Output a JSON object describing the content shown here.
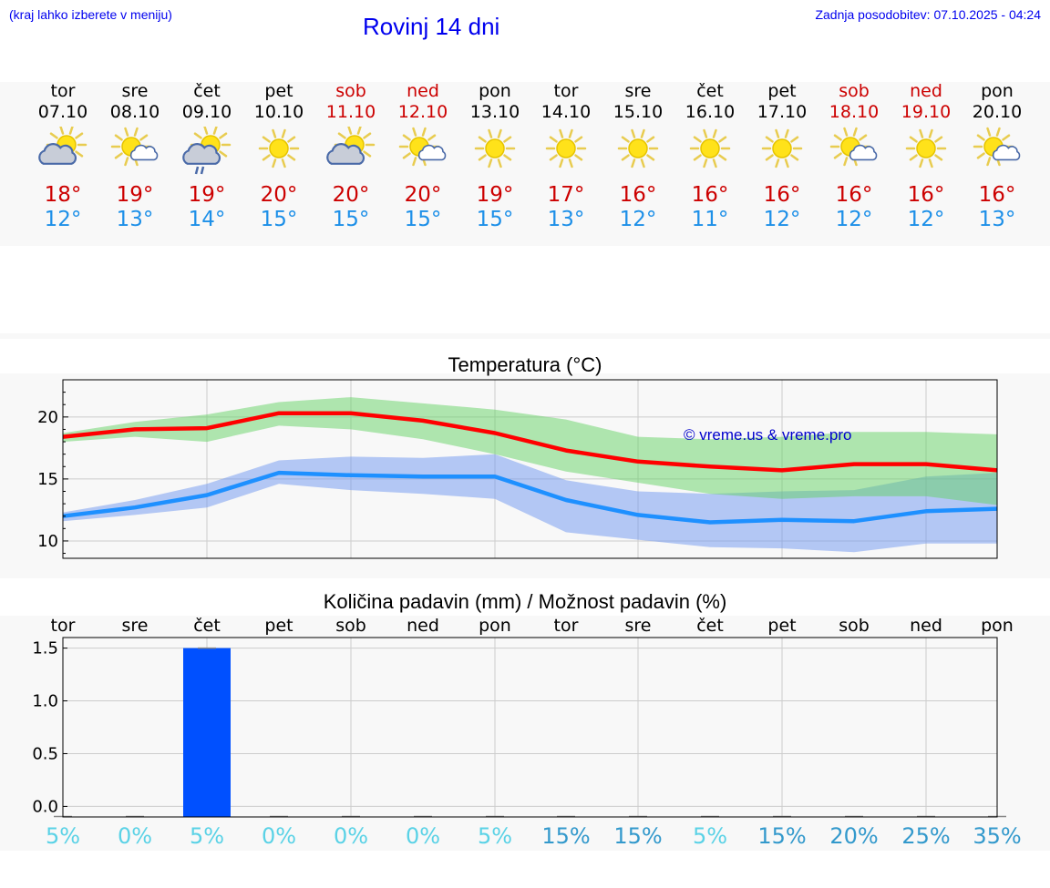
{
  "header": {
    "hint": "(kraj lahko izberete v meniju)",
    "title": "Rovinj 14 dni",
    "updated": "Zadnja posodobitev: 07.10.2025 - 04:24"
  },
  "colors": {
    "max": "#cc0000",
    "min": "#1e90e8",
    "link": "#0000ee",
    "bar": "#0050ff",
    "pct_low": "#5ad2e6",
    "pct_high": "#3399cc"
  },
  "days": [
    {
      "name": "tor",
      "date": "07.10",
      "weekend": false,
      "icon": "partly-cloudy-icon",
      "max": "18°",
      "min": "12°"
    },
    {
      "name": "sre",
      "date": "08.10",
      "weekend": false,
      "icon": "sun-small-cloud-icon",
      "max": "19°",
      "min": "13°"
    },
    {
      "name": "čet",
      "date": "09.10",
      "weekend": false,
      "icon": "rain-cloud-sun-icon",
      "max": "19°",
      "min": "14°"
    },
    {
      "name": "pet",
      "date": "10.10",
      "weekend": false,
      "icon": "sun-icon",
      "max": "20°",
      "min": "15°"
    },
    {
      "name": "sob",
      "date": "11.10",
      "weekend": true,
      "icon": "partly-cloudy-icon",
      "max": "20°",
      "min": "15°"
    },
    {
      "name": "ned",
      "date": "12.10",
      "weekend": true,
      "icon": "sun-small-cloud-icon",
      "max": "20°",
      "min": "15°"
    },
    {
      "name": "pon",
      "date": "13.10",
      "weekend": false,
      "icon": "sun-icon",
      "max": "19°",
      "min": "15°"
    },
    {
      "name": "tor",
      "date": "14.10",
      "weekend": false,
      "icon": "sun-icon",
      "max": "17°",
      "min": "13°"
    },
    {
      "name": "sre",
      "date": "15.10",
      "weekend": false,
      "icon": "sun-icon",
      "max": "16°",
      "min": "12°"
    },
    {
      "name": "čet",
      "date": "16.10",
      "weekend": false,
      "icon": "sun-icon",
      "max": "16°",
      "min": "11°"
    },
    {
      "name": "pet",
      "date": "17.10",
      "weekend": false,
      "icon": "sun-icon",
      "max": "16°",
      "min": "12°"
    },
    {
      "name": "sob",
      "date": "18.10",
      "weekend": true,
      "icon": "sun-small-cloud-icon",
      "max": "16°",
      "min": "12°"
    },
    {
      "name": "ned",
      "date": "19.10",
      "weekend": true,
      "icon": "sun-icon",
      "max": "16°",
      "min": "12°"
    },
    {
      "name": "pon",
      "date": "20.10",
      "weekend": false,
      "icon": "sun-small-cloud-icon",
      "max": "16°",
      "min": "13°"
    }
  ],
  "chart_data": [
    {
      "type": "line",
      "title": "Temperatura (°C)",
      "watermark": "© vreme.us & vreme.pro",
      "ylim": [
        8.6,
        23.0
      ],
      "yticks": [
        10,
        15,
        20
      ],
      "grid": true,
      "series": [
        {
          "name": "max",
          "values": [
            18.4,
            19.0,
            19.1,
            20.3,
            20.3,
            19.7,
            18.7,
            17.3,
            16.4,
            16.0,
            15.7,
            16.2,
            16.2,
            15.7
          ],
          "band_low": [
            18.0,
            18.4,
            18.0,
            19.3,
            19.0,
            18.2,
            17.0,
            15.6,
            14.7,
            13.8,
            13.4,
            13.6,
            13.6,
            12.9
          ],
          "band_high": [
            18.7,
            19.6,
            20.2,
            21.2,
            21.6,
            21.1,
            20.6,
            19.8,
            18.4,
            18.2,
            18.4,
            18.8,
            18.8,
            18.6
          ]
        },
        {
          "name": "min",
          "values": [
            12.0,
            12.7,
            13.7,
            15.5,
            15.3,
            15.2,
            15.2,
            13.3,
            12.1,
            11.5,
            11.7,
            11.6,
            12.4,
            12.6
          ],
          "band_low": [
            11.6,
            12.1,
            12.7,
            14.6,
            14.1,
            13.8,
            13.4,
            10.7,
            10.1,
            9.5,
            9.4,
            9.1,
            9.8,
            9.8
          ],
          "band_high": [
            12.3,
            13.3,
            14.6,
            16.5,
            16.8,
            16.7,
            17.0,
            14.9,
            14.0,
            13.8,
            14.0,
            14.1,
            15.2,
            15.5
          ]
        }
      ]
    },
    {
      "type": "bar",
      "title": "Količina padavin (mm) / Možnost padavin (%)",
      "categories": [
        "tor",
        "sre",
        "čet",
        "pet",
        "sob",
        "ned",
        "pon",
        "tor",
        "sre",
        "čet",
        "pet",
        "sob",
        "ned",
        "pon"
      ],
      "values": [
        0,
        0,
        1.5,
        0,
        0,
        0,
        0,
        0,
        0,
        0,
        0,
        0,
        0,
        0
      ],
      "ylim": [
        -0.1,
        1.6
      ],
      "yticks": [
        "0.0",
        "0.5",
        "1.0",
        "1.5"
      ],
      "probability": [
        "5%",
        "0%",
        "5%",
        "0%",
        "0%",
        "0%",
        "5%",
        "15%",
        "15%",
        "5%",
        "15%",
        "20%",
        "25%",
        "35%"
      ]
    }
  ]
}
